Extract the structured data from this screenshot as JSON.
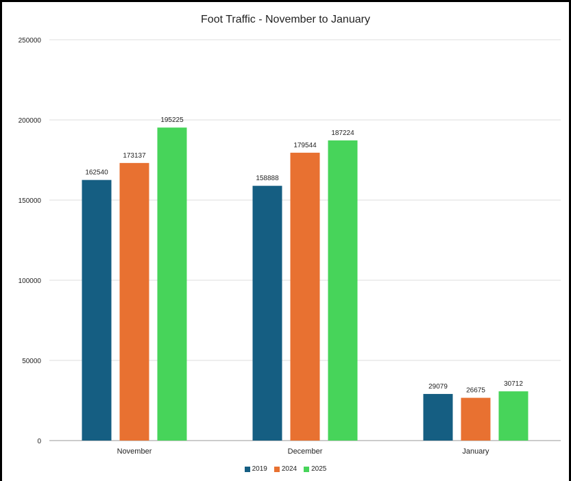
{
  "chart_data": {
    "type": "bar",
    "title": "Foot Traffic - November to January",
    "xlabel": "",
    "ylabel": "",
    "categories": [
      "November",
      "December",
      "January"
    ],
    "series": [
      {
        "name": "2019",
        "color": "#155e82",
        "values": [
          162540,
          158888,
          29079
        ]
      },
      {
        "name": "2024",
        "color": "#e87131",
        "values": [
          173137,
          179544,
          26675
        ]
      },
      {
        "name": "2025",
        "color": "#47d45a",
        "values": [
          195225,
          187224,
          30712
        ]
      }
    ],
    "ylim": [
      0,
      250000
    ],
    "yticks": [
      0,
      50000,
      100000,
      150000,
      200000,
      250000
    ],
    "grid": true,
    "legend": "bottom-center",
    "data_labels": true
  }
}
